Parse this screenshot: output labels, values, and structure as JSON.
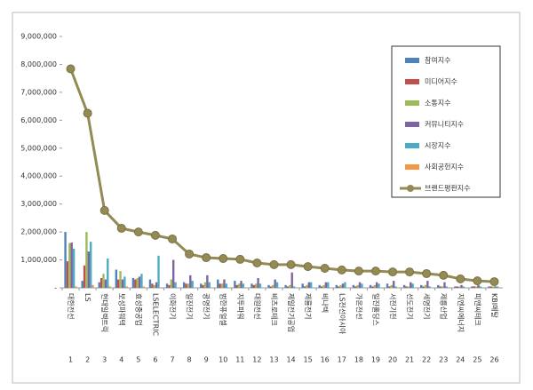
{
  "chart_data": {
    "type": "bar",
    "categories": [
      "대한전선",
      "LS",
      "현대일렉트릭",
      "보성파워텍",
      "효성중공업",
      "LSELECTRIC",
      "이화전기",
      "일진전기",
      "광명전기",
      "범한퓨얼셀",
      "지투파워",
      "대원전선",
      "비츠로테크",
      "제일전기공업",
      "제룡전기",
      "비나텍",
      "LS전선아시아",
      "가온전선",
      "일진홀딩스",
      "서전기전",
      "선도전기",
      "세명전기",
      "제룡산업",
      "지엔씨에너지",
      "피앤씨테크",
      "KBI메탈"
    ],
    "ranks": [
      1,
      2,
      3,
      4,
      5,
      6,
      7,
      8,
      9,
      10,
      11,
      12,
      13,
      14,
      15,
      16,
      17,
      18,
      19,
      20,
      21,
      22,
      23,
      24,
      25,
      26
    ],
    "series": [
      {
        "name": "참여지수",
        "color": "#4f81bd",
        "values": [
          2000000,
          250000,
          200000,
          650000,
          350000,
          300000,
          150000,
          200000,
          150000,
          300000,
          250000,
          150000,
          100000,
          100000,
          150000,
          100000,
          100000,
          100000,
          100000,
          150000,
          100000,
          100000,
          100000,
          50000,
          50000,
          50000
        ]
      },
      {
        "name": "미디어지수",
        "color": "#c0504d",
        "values": [
          950000,
          800000,
          350000,
          300000,
          300000,
          150000,
          100000,
          150000,
          100000,
          150000,
          100000,
          100000,
          50000,
          50000,
          50000,
          50000,
          50000,
          50000,
          50000,
          50000,
          50000,
          50000,
          50000,
          50000,
          50000,
          50000
        ]
      },
      {
        "name": "소통지수",
        "color": "#9bbb59",
        "values": [
          1600000,
          2000000,
          500000,
          600000,
          350000,
          100000,
          300000,
          150000,
          200000,
          150000,
          150000,
          150000,
          100000,
          100000,
          100000,
          100000,
          100000,
          100000,
          100000,
          100000,
          50000,
          100000,
          50000,
          50000,
          50000,
          50000
        ]
      },
      {
        "name": "커뮤니티지수",
        "color": "#8064a2",
        "values": [
          1620000,
          1300000,
          300000,
          300000,
          400000,
          200000,
          1000000,
          450000,
          450000,
          300000,
          250000,
          350000,
          300000,
          550000,
          200000,
          200000,
          150000,
          200000,
          200000,
          250000,
          200000,
          250000,
          200000,
          100000,
          100000,
          50000
        ]
      },
      {
        "name": "시장지수",
        "color": "#4bacc6",
        "values": [
          1400000,
          1650000,
          1050000,
          400000,
          500000,
          1150000,
          200000,
          250000,
          200000,
          150000,
          150000,
          150000,
          200000,
          50000,
          200000,
          200000,
          200000,
          150000,
          150000,
          50000,
          150000,
          50000,
          50000,
          50000,
          50000,
          50000
        ]
      },
      {
        "name": "사회공헌지수",
        "color": "#f79646",
        "values": [
          50000,
          100000,
          50000,
          50000,
          50000,
          0,
          0,
          0,
          0,
          0,
          0,
          0,
          0,
          0,
          0,
          0,
          0,
          0,
          0,
          0,
          0,
          0,
          0,
          0,
          0,
          0
        ]
      },
      {
        "name": "브랜드평판지수",
        "type": "line",
        "color": "#948a54",
        "values": [
          7840000,
          6250000,
          2770000,
          2130000,
          2000000,
          1880000,
          1750000,
          1210000,
          1080000,
          1050000,
          1020000,
          890000,
          830000,
          830000,
          760000,
          700000,
          640000,
          600000,
          600000,
          570000,
          570000,
          510000,
          450000,
          320000,
          250000,
          220000
        ]
      }
    ],
    "ylim": [
      0,
      9000000
    ],
    "yticks": [
      {
        "value": 0,
        "label": "-"
      },
      {
        "value": 1000000,
        "label": "1,000,000"
      },
      {
        "value": 2000000,
        "label": "2,000,000"
      },
      {
        "value": 3000000,
        "label": "3,000,000"
      },
      {
        "value": 4000000,
        "label": "4,000,000"
      },
      {
        "value": 5000000,
        "label": "5,000,000"
      },
      {
        "value": 6000000,
        "label": "6,000,000"
      },
      {
        "value": 7000000,
        "label": "7,000,000"
      },
      {
        "value": 8000000,
        "label": "8,000,000"
      },
      {
        "value": 9000000,
        "label": "9,000,000"
      }
    ]
  }
}
